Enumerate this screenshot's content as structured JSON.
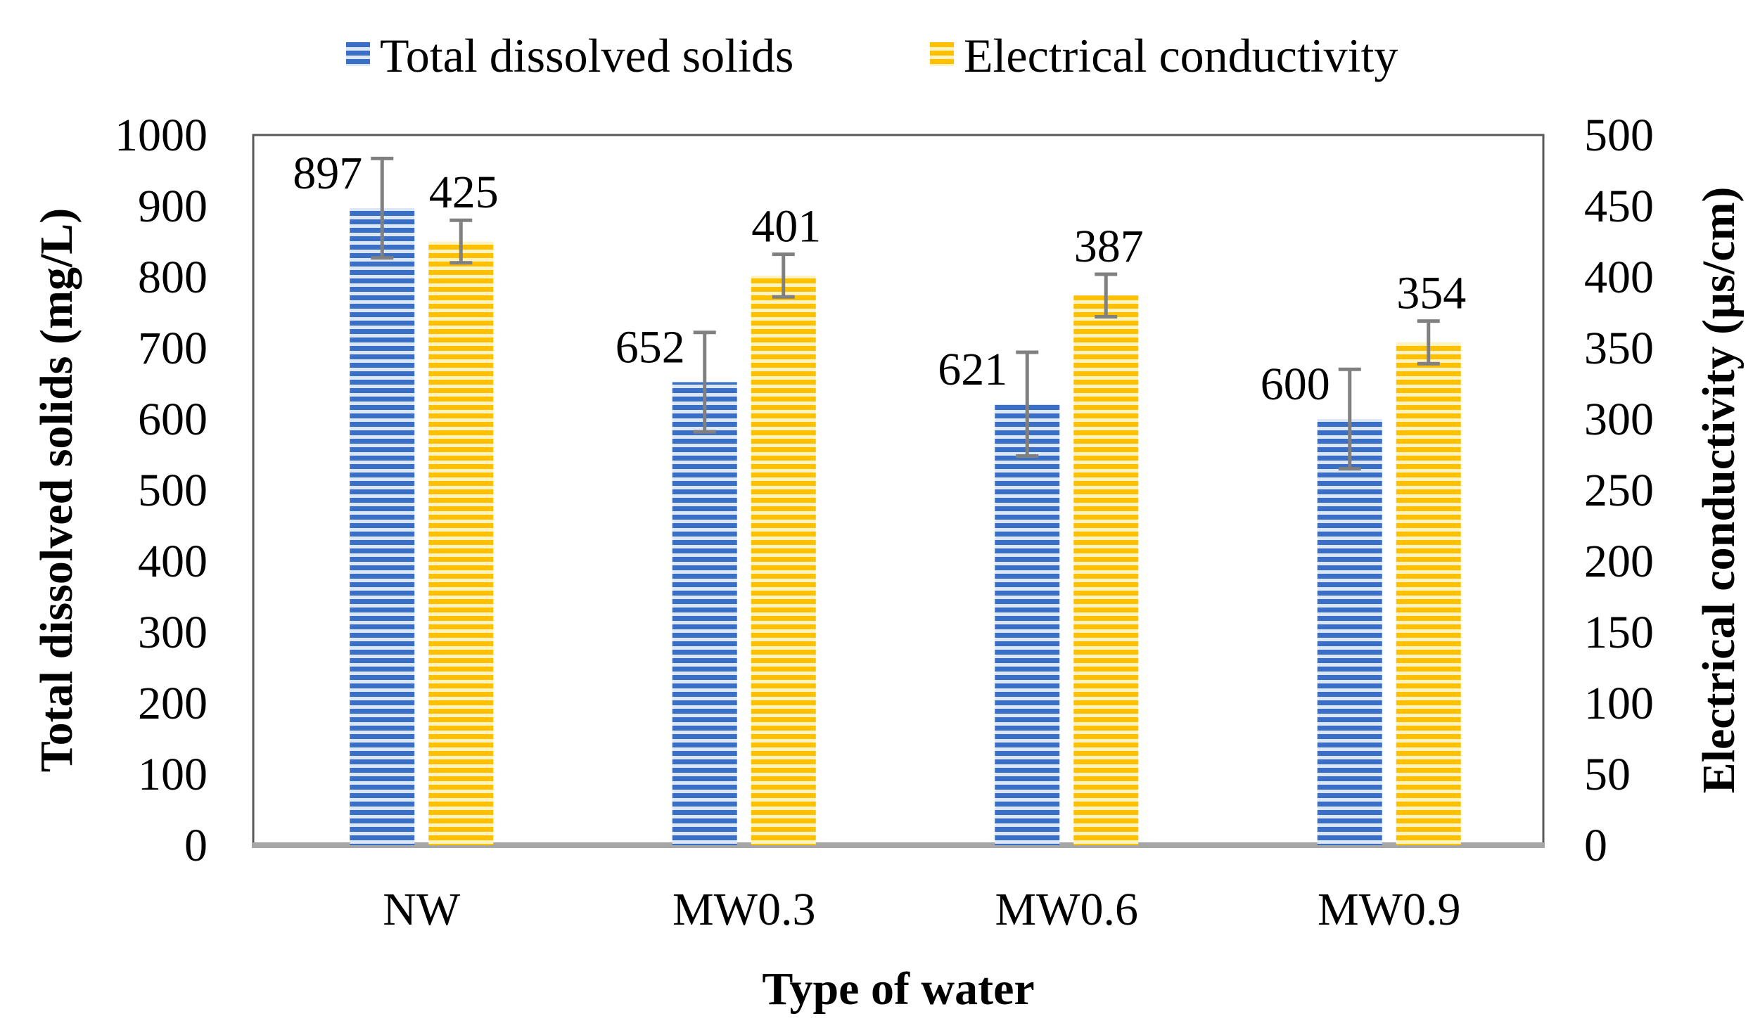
{
  "chart_data": {
    "type": "bar",
    "categories": [
      "NW",
      "MW0.3",
      "MW0.6",
      "MW0.9"
    ],
    "xlabel": "Type of water",
    "ylabel": "Total dissolved solids (mg/L)",
    "y2label": "Electrical conductivity (µs/cm)",
    "ylim": [
      0,
      1000
    ],
    "y2lim": [
      0,
      500
    ],
    "yticks": [
      "0",
      "100",
      "200",
      "300",
      "400",
      "500",
      "600",
      "700",
      "800",
      "900",
      "1000"
    ],
    "y2ticks": [
      "0",
      "50",
      "100",
      "150",
      "200",
      "250",
      "300",
      "350",
      "400",
      "450",
      "500"
    ],
    "grid": false,
    "legend": "top",
    "series": [
      {
        "name": "Total dissolved solids",
        "axis": "left",
        "color": "#4472C4",
        "values": [
          897,
          652,
          621,
          600
        ],
        "labels": [
          "897",
          "652",
          "621",
          "600"
        ],
        "error": [
          70,
          70,
          73,
          70
        ]
      },
      {
        "name": "Electrical conductivity",
        "axis": "right",
        "color": "#FFC000",
        "values": [
          425,
          401,
          387,
          354
        ],
        "labels": [
          "425",
          "401",
          "387",
          "354"
        ],
        "error": [
          15,
          15,
          15,
          15
        ]
      }
    ]
  }
}
